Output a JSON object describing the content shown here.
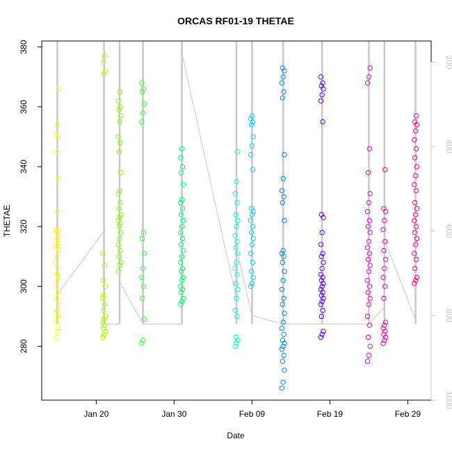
{
  "chart_data": {
    "type": "scatter",
    "title": "ORCAS RF01-19 THETAE",
    "xlabel": "Date",
    "ylabel": "THETAE",
    "secondary_axis": {
      "side": "right",
      "range": [
        1000,
        150
      ],
      "ticks": [
        "200",
        "400",
        "600",
        "800",
        "1000"
      ],
      "color": "#c8c8c8"
    },
    "xlim": [
      "2016-01-13",
      "2016-03-03"
    ],
    "ylim": [
      262,
      382
    ],
    "x_ticks": [
      {
        "date": "2016-01-20",
        "label": "Jan 20"
      },
      {
        "date": "2016-01-30",
        "label": "Jan 30"
      },
      {
        "date": "2016-02-09",
        "label": "Feb 09"
      },
      {
        "date": "2016-02-19",
        "label": "Feb 19"
      },
      {
        "date": "2016-02-29",
        "label": "Feb 29"
      }
    ],
    "y_ticks": [
      "280",
      "300",
      "320",
      "340",
      "360",
      "380"
    ],
    "grid": false,
    "legend": "none",
    "marker": "open-circle",
    "series": [
      {
        "date": "2016-01-15",
        "color": "#ffff00",
        "values": [
          283,
          285,
          286,
          288,
          290,
          291,
          292,
          294,
          296,
          298,
          300,
          302,
          303,
          304,
          306,
          308,
          310,
          312,
          313,
          314,
          315,
          316,
          317,
          318,
          319,
          319,
          325,
          336,
          345,
          350,
          351,
          354,
          366
        ]
      },
      {
        "date": "2016-01-21",
        "color": "#aaff00",
        "values": [
          283,
          284,
          285,
          286,
          287,
          288,
          289,
          290,
          292,
          294,
          296,
          297,
          300,
          302,
          307,
          311,
          371,
          372,
          375,
          377
        ]
      },
      {
        "date": "2016-01-23",
        "color": "#80ff00",
        "values": [
          305,
          307,
          308,
          310,
          312,
          314,
          316,
          318,
          320,
          321,
          322,
          323,
          324,
          326,
          328,
          331,
          332,
          338,
          345,
          348,
          350,
          355,
          357,
          359,
          360,
          362,
          365
        ]
      },
      {
        "date": "2016-01-26",
        "color": "#40ff40",
        "values": [
          281,
          282,
          289,
          296,
          300,
          303,
          306,
          311,
          316,
          318,
          355,
          358,
          361,
          365,
          366,
          368
        ]
      },
      {
        "date": "2016-01-31",
        "color": "#00ff6a",
        "values": [
          294,
          295,
          296,
          298,
          299,
          300,
          302,
          303,
          305,
          306,
          308,
          310,
          312,
          314,
          316,
          318,
          320,
          322,
          324,
          326,
          328,
          329,
          334,
          338,
          340,
          343,
          346
        ]
      },
      {
        "date": "2016-02-07",
        "color": "#00ffcc",
        "values": [
          280,
          281,
          282,
          283,
          290,
          292,
          296,
          299,
          301,
          304,
          306,
          308,
          311,
          313,
          315,
          317,
          320,
          322,
          324,
          328,
          331,
          335,
          345
        ]
      },
      {
        "date": "2016-02-09",
        "color": "#00d8ff",
        "values": [
          300,
          301,
          303,
          305,
          308,
          311,
          314,
          316,
          318,
          320,
          322,
          324,
          325,
          326,
          339,
          344,
          347,
          350,
          354,
          355,
          356,
          357
        ]
      },
      {
        "date": "2016-02-13",
        "color": "#0088ff",
        "values": [
          266,
          268,
          272,
          275,
          277,
          279,
          280,
          281,
          282,
          284,
          286,
          288,
          291,
          294,
          296,
          299,
          302,
          305,
          308,
          310,
          311,
          312,
          322,
          328,
          330,
          332,
          336,
          344,
          363,
          365,
          368,
          370,
          372,
          373
        ]
      },
      {
        "date": "2016-02-18",
        "color": "#5500ff",
        "values": [
          283,
          284,
          285,
          290,
          292,
          294,
          295,
          296,
          297,
          298,
          299,
          300,
          301,
          302,
          303,
          304,
          306,
          308,
          310,
          311,
          314,
          318,
          323,
          324,
          355,
          362,
          364,
          366,
          367,
          368,
          370
        ]
      },
      {
        "date": "2016-02-24",
        "color": "#ee00dd",
        "values": [
          275,
          277,
          280,
          283,
          287,
          290,
          294,
          296,
          298,
          300,
          302,
          305,
          307,
          309,
          311,
          313,
          315,
          318,
          320,
          322,
          325,
          328,
          331,
          338,
          346,
          368,
          370,
          373
        ]
      },
      {
        "date": "2016-02-26",
        "color": "#ff00b0",
        "values": [
          281,
          282,
          283,
          284,
          285,
          286,
          287,
          288,
          296,
          300,
          303,
          306,
          309,
          312,
          315,
          319,
          322,
          325,
          326,
          339
        ]
      },
      {
        "date": "2016-03-01",
        "color": "#ff0080",
        "values": [
          301,
          302,
          303,
          306,
          309,
          311,
          314,
          316,
          318,
          320,
          322,
          324,
          326,
          328,
          332,
          334,
          337,
          340,
          343,
          346,
          349,
          352,
          354,
          355,
          357
        ]
      }
    ],
    "pressure_track_color": "#c8c8c8"
  }
}
